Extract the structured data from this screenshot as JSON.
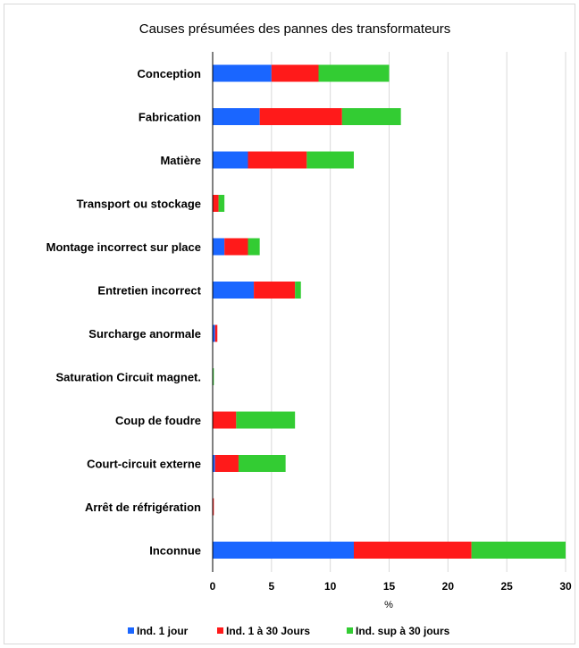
{
  "chart_data": {
    "type": "bar",
    "orientation": "horizontal",
    "stacked": true,
    "title": "Causes présumées des pannes des transformateurs",
    "xlabel": "%",
    "ylabel": "",
    "xlim": [
      0,
      30
    ],
    "xticks": [
      "0",
      "5",
      "10",
      "15",
      "20",
      "25",
      "30"
    ],
    "grid": true,
    "legend_position": "bottom",
    "categories": [
      "Conception",
      "Fabrication",
      "Matière",
      "Transport ou stockage",
      "Montage incorrect sur place",
      "Entretien incorrect",
      "Surcharge anormale",
      "Saturation Circuit magnet.",
      "Coup de foudre",
      "Court-circuit externe",
      "Arrêt de réfrigération",
      "Inconnue"
    ],
    "series": [
      {
        "name": "Ind. 1 jour",
        "color": "#1a66ff",
        "values": [
          5,
          4,
          3,
          0,
          1,
          3.5,
          0.2,
          0,
          0,
          0.2,
          0,
          12
        ]
      },
      {
        "name": "Ind. 1 à 30 Jours",
        "color": "#ff1a1a",
        "values": [
          4,
          7,
          5,
          0.5,
          2,
          3.5,
          0.2,
          0,
          2,
          2,
          0.1,
          10
        ]
      },
      {
        "name": "Ind. sup à 30 jours",
        "color": "#33cc33",
        "values": [
          6,
          5,
          4,
          0.5,
          1,
          0.5,
          0,
          0.1,
          5,
          4,
          0,
          8
        ]
      }
    ]
  }
}
